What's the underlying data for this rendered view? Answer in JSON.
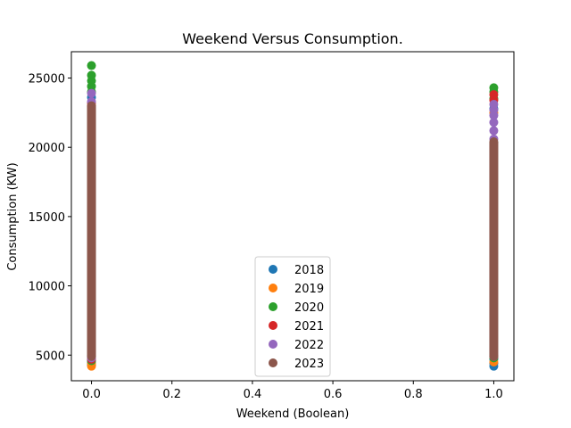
{
  "chart_data": {
    "type": "scatter",
    "title": "Weekend Versus Consumption.",
    "xlabel": "Weekend (Boolean)",
    "ylabel": "Consumption (KW)",
    "xlim": [
      -0.05,
      1.05
    ],
    "ylim": [
      3150,
      26900
    ],
    "xticks": [
      0.0,
      0.2,
      0.4,
      0.6,
      0.8,
      1.0
    ],
    "xtick_labels": [
      "0.0",
      "0.2",
      "0.4",
      "0.6",
      "0.8",
      "1.0"
    ],
    "yticks": [
      5000,
      10000,
      15000,
      20000,
      25000
    ],
    "ytick_labels": [
      "5000",
      "10000",
      "15000",
      "20000",
      "25000"
    ],
    "grid": false,
    "legend_position": "bottom-center",
    "series": [
      {
        "name": "2018",
        "color": "#1f77b4",
        "points": [
          [
            0,
            4300
          ],
          [
            0,
            4500
          ],
          [
            0,
            23600
          ],
          [
            1,
            4200
          ],
          [
            1,
            4400
          ],
          [
            1,
            4700
          ],
          [
            1,
            22800
          ]
        ]
      },
      {
        "name": "2019",
        "color": "#ff7f0e",
        "points": [
          [
            0,
            4200
          ],
          [
            0,
            4400
          ],
          [
            0,
            23000
          ],
          [
            1,
            4500
          ],
          [
            1,
            22500
          ]
        ]
      },
      {
        "name": "2020",
        "color": "#2ca02c",
        "points": [
          [
            0,
            4600
          ],
          [
            0,
            4900
          ],
          [
            0,
            24000
          ],
          [
            0,
            24400
          ],
          [
            0,
            24800
          ],
          [
            0,
            25200
          ],
          [
            0,
            25900
          ],
          [
            1,
            4800
          ],
          [
            1,
            23500
          ],
          [
            1,
            24000
          ],
          [
            1,
            24300
          ]
        ]
      },
      {
        "name": "2021",
        "color": "#d62728",
        "points": [
          [
            0,
            4700
          ],
          [
            0,
            23200
          ],
          [
            1,
            4900
          ],
          [
            1,
            23400
          ],
          [
            1,
            23800
          ]
        ]
      },
      {
        "name": "2022",
        "color": "#9467bd",
        "points": [
          [
            0,
            4800
          ],
          [
            0,
            23300
          ],
          [
            0,
            23900
          ],
          [
            1,
            4900
          ],
          [
            1,
            20600
          ],
          [
            1,
            21200
          ],
          [
            1,
            21800
          ],
          [
            1,
            22300
          ],
          [
            1,
            22700
          ],
          [
            1,
            23100
          ]
        ]
      },
      {
        "name": "2023",
        "color": "#8c564b",
        "range_points": [
          [
            0,
            4900,
            23000
          ],
          [
            1,
            4900,
            20400
          ]
        ]
      }
    ]
  }
}
